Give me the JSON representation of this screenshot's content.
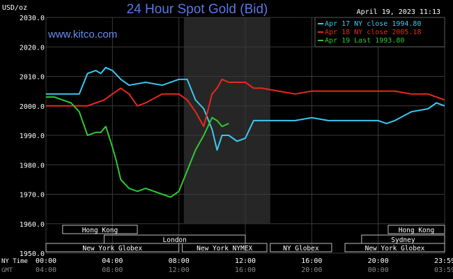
{
  "chart_data": {
    "type": "line",
    "title": "24 Hour Spot Gold (Bid)",
    "ylabel": "USD/oz",
    "watermark": "www.kitco.com",
    "date": "April 19, 2023 11:13",
    "ylim": [
      1950,
      2030
    ],
    "y_ticks": [
      "2030.0",
      "2020.0",
      "2010.0",
      "2000.0",
      "1990.0",
      "1980.0",
      "1970.0",
      "1960.0",
      "1950.0"
    ],
    "x_tz_labels": [
      "NY Time",
      "GMT"
    ],
    "x_ticks_ny": [
      "00:00",
      "04:00",
      "08:00",
      "12:00",
      "16:00",
      "20:00",
      "23:59"
    ],
    "x_ticks_gmt": [
      "04:00",
      "08:00",
      "12:00",
      "16:00",
      "20:00",
      "00:00",
      "03:59"
    ],
    "sessions": [
      {
        "label": "Hong Kong",
        "row": 0,
        "start": 1.0,
        "end": 5.5
      },
      {
        "label": "Hong Kong",
        "row": 0,
        "start": 20.6,
        "end": 24.0
      },
      {
        "label": "London",
        "row": 1,
        "start": 3.5,
        "end": 12.0
      },
      {
        "label": "Sydney",
        "row": 1,
        "start": 19.0,
        "end": 24.0
      },
      {
        "label": "New York Globex",
        "row": 2,
        "start": 0.0,
        "end": 8.0
      },
      {
        "label": "New York NYMEX",
        "row": 2,
        "start": 8.2,
        "end": 13.3
      },
      {
        "label": "NY Globex",
        "row": 2,
        "start": 13.5,
        "end": 17.2
      },
      {
        "label": "New York Globex",
        "row": 2,
        "start": 18.0,
        "end": 24.0
      }
    ],
    "shade_region": [
      8.3,
      13.5
    ],
    "series": [
      {
        "name": "Apr 17 NY close 1994.80",
        "color": "#3cc8f0",
        "x": [
          0,
          1.5,
          2,
          2.5,
          3,
          3.3,
          3.6,
          4,
          4.5,
          5,
          6,
          7,
          8,
          8.5,
          9,
          9.5,
          10,
          10.3,
          10.6,
          11,
          11.5,
          12,
          12.5,
          13,
          14,
          15,
          16,
          17,
          18,
          19,
          20,
          20.5,
          21,
          22,
          23,
          23.5,
          24
        ],
        "y": [
          2004,
          2004,
          2004,
          2011,
          2012,
          2011,
          2013,
          2012,
          2009,
          2007,
          2008,
          2007,
          2009,
          2009,
          2002,
          1999,
          1992,
          1985,
          1990,
          1990,
          1988,
          1989,
          1995,
          1995,
          1995,
          1995,
          1996,
          1995,
          1995,
          1995,
          1995,
          1994,
          1995,
          1998,
          1999,
          2001,
          2000
        ]
      },
      {
        "name": "Apr 18 NY close 2005.18",
        "color": "#e8281e",
        "x": [
          0,
          1,
          1.5,
          2,
          2.5,
          3,
          3.5,
          4,
          4.5,
          5,
          5.5,
          6,
          7,
          8,
          8.5,
          9,
          9.5,
          10,
          10.3,
          10.6,
          11,
          12,
          12.5,
          13,
          14,
          15,
          16,
          17,
          18,
          19,
          20,
          21,
          22,
          23,
          23.5,
          24
        ],
        "y": [
          2000,
          2000,
          2000,
          2000,
          2000,
          2001,
          2002,
          2004,
          2006,
          2004,
          2000,
          2001,
          2004,
          2004,
          2002,
          1998,
          1993,
          2004,
          2006,
          2009,
          2008,
          2008,
          2006,
          2006,
          2005,
          2004,
          2005,
          2005,
          2005,
          2005,
          2005,
          2005,
          2004,
          2004,
          2003,
          2002
        ]
      },
      {
        "name": "Apr 19 Last 1993.80",
        "color": "#32c832",
        "x": [
          0,
          0.5,
          1,
          1.5,
          2,
          2.5,
          3,
          3.3,
          3.6,
          4,
          4.2,
          4.5,
          5,
          5.5,
          6,
          6.5,
          7,
          7.5,
          8,
          8.5,
          9,
          9.5,
          10,
          10.3,
          10.6,
          11
        ],
        "y": [
          2003,
          2003,
          2002,
          2001,
          1998,
          1990,
          1991,
          1991,
          1993,
          1986,
          1982,
          1975,
          1972,
          1971,
          1972,
          1971,
          1970,
          1969,
          1971,
          1978,
          1985,
          1990,
          1996,
          1995,
          1993,
          1994
        ]
      }
    ]
  }
}
